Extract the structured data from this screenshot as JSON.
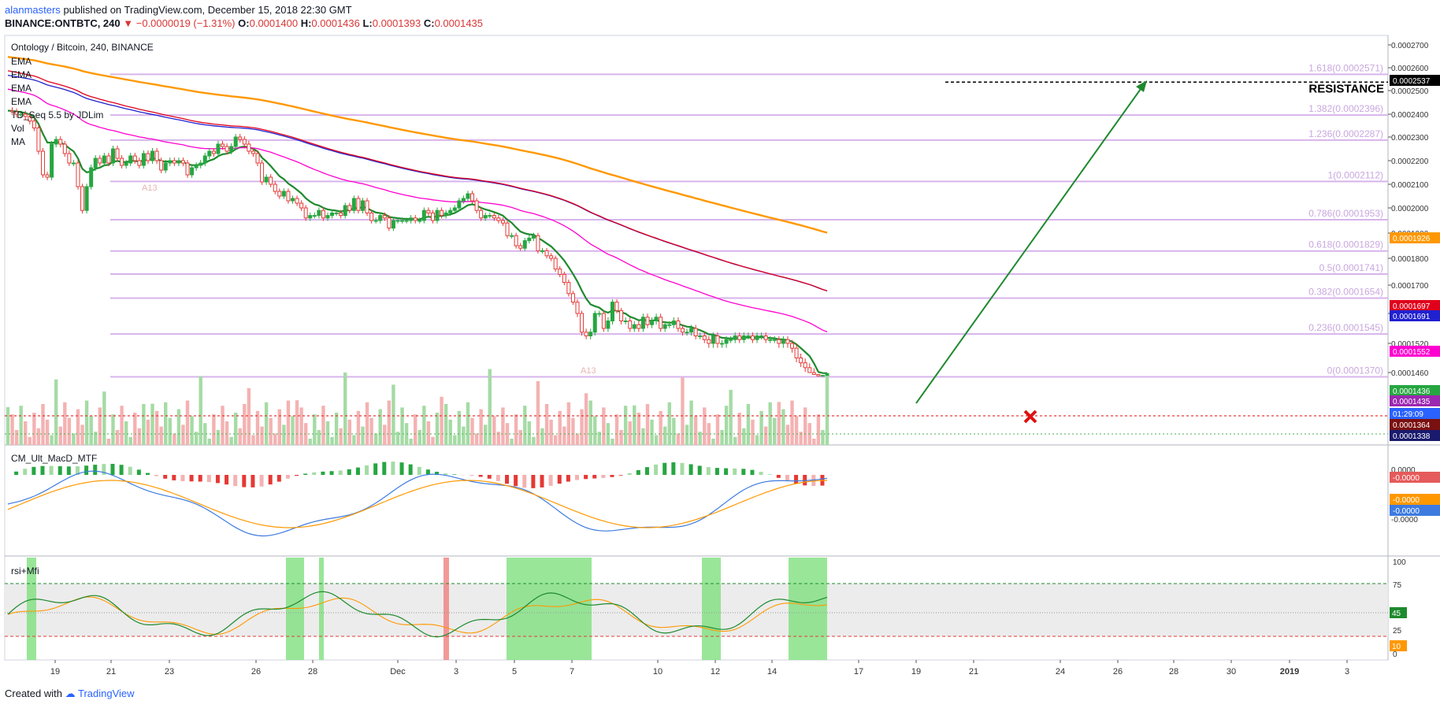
{
  "header": {
    "author": "alanmasters",
    "published_text": "published on TradingView.com, December 15, 2018 22:30 GMT",
    "symbol_line": "BINANCE:ONTBTC, 240",
    "change_arrow": "▼",
    "change_text": "−0.0000019 (−1.31%)",
    "ohlc": {
      "o_label": "O:",
      "o": "0.0001400",
      "h_label": "H:",
      "h": "0.0001436",
      "l_label": "L:",
      "l": "0.0001393",
      "c_label": "C:",
      "c": "0.0001435"
    }
  },
  "footer": {
    "created_with": "Created with",
    "brand": "TradingView"
  },
  "chart_data": {
    "type": "candlestick",
    "title": "Ontology / Bitcoin, 240, BINANCE",
    "legend": [
      "EMA",
      "EMA",
      "EMA",
      "EMA",
      "TD_Seq 5.5 by JDLim",
      "Vol",
      "MA"
    ],
    "y_ticks": [
      "0.0002700",
      "0.0002600",
      "0.0002500",
      "0.0002400",
      "0.0002300",
      "0.0002200",
      "0.0002100",
      "0.0002000",
      "0.0001900",
      "0.0001800",
      "0.0001700",
      "0.0001600",
      "0.0001520",
      "0.0001460"
    ],
    "x_ticks": [
      "19",
      "21",
      "23",
      "26",
      "28",
      "Dec",
      "3",
      "5",
      "7",
      "10",
      "12",
      "14",
      "17",
      "19",
      "21",
      "24",
      "26",
      "28",
      "30",
      "2019",
      "3"
    ],
    "fib_levels": [
      {
        "ratio": "1.618",
        "price": "0.0002571",
        "label": "1.618(0.0002571)"
      },
      {
        "ratio": "1.382",
        "price": "0.0002396",
        "label": "1.382(0.0002396)"
      },
      {
        "ratio": "1.236",
        "price": "0.0002287",
        "label": "1.236(0.0002287)"
      },
      {
        "ratio": "1",
        "price": "0.0002112",
        "label": "1(0.0002112)"
      },
      {
        "ratio": "0.786",
        "price": "0.0001953",
        "label": "0.786(0.0001953)"
      },
      {
        "ratio": "0.618",
        "price": "0.0001829",
        "label": "0.618(0.0001829)"
      },
      {
        "ratio": "0.5",
        "price": "0.0001741",
        "label": "0.5(0.0001741)"
      },
      {
        "ratio": "0.382",
        "price": "0.0001654",
        "label": "0.382(0.0001654)"
      },
      {
        "ratio": "0.236",
        "price": "0.0001545",
        "label": "0.236(0.0001545)"
      },
      {
        "ratio": "0",
        "price": "0.0001370",
        "label": "0(0.0001370)"
      }
    ],
    "resistance": {
      "label": "RESISTANCE",
      "price": "0.0002537"
    },
    "price_tags": [
      {
        "text": "0.0002537",
        "color": "#000000"
      },
      {
        "text": "0.0001926",
        "color": "#ff9800"
      },
      {
        "text": "0.0001697",
        "color": "#e0001b"
      },
      {
        "text": "0.0001691",
        "color": "#2020d0"
      },
      {
        "text": "0.0001552",
        "color": "#ff00d0"
      },
      {
        "text": "0.0001436",
        "color": "#26a641"
      },
      {
        "text": "0.0001435",
        "color": "#9c27b0"
      },
      {
        "text": "01:29:09",
        "color": "#2962ff"
      },
      {
        "text": "0.0001364",
        "color": "#7b1010"
      },
      {
        "text": "0.0001338",
        "color": "#1a1a6e"
      }
    ],
    "annotations": [
      "A13",
      "A13"
    ],
    "closes": [
      0.0002415,
      0.000241,
      0.00024,
      0.00024,
      0.000239,
      0.000237,
      0.000234,
      0.000224,
      0.000214,
      0.000213,
      0.000227,
      0.000229,
      0.000227,
      0.000223,
      0.000219,
      0.000219,
      0.000209,
      0.000199,
      0.000209,
      0.000217,
      0.000221,
      0.000219,
      0.000222,
      0.000219,
      0.000225,
      0.000221,
      0.000218,
      0.000219,
      0.000222,
      0.00022,
      0.000218,
      0.000223,
      0.00022,
      0.000224,
      0.00022,
      0.000216,
      0.000219,
      0.00022,
      0.000219,
      0.00022,
      0.000219,
      0.000214,
      0.000217,
      0.000218,
      0.000219,
      0.000222,
      0.000224,
      0.000223,
      0.000227,
      0.000226,
      0.000224,
      0.000226,
      0.00023,
      0.000229,
      0.000227,
      0.000224,
      0.000223,
      0.000219,
      0.000211,
      0.000213,
      0.00021,
      0.000207,
      0.000205,
      0.000207,
      0.000203,
      0.000204,
      0.000202,
      0.0002,
      0.000196,
      0.000197,
      0.000197,
      0.000199,
      0.000196,
      0.000197,
      0.000198,
      0.000198,
      0.000197,
      0.000201,
      0.000199,
      0.000204,
      0.000199,
      0.000203,
      0.000198,
      0.000195,
      0.000195,
      0.000197,
      0.000196,
      0.000192,
      0.000195,
      0.000195,
      0.000195,
      0.000195,
      0.000196,
      0.000195,
      0.000195,
      0.000199,
      0.000198,
      0.000195,
      0.000199,
      0.000197,
      0.000198,
      0.000199,
      0.0002,
      0.000203,
      0.000204,
      0.000206,
      0.000203,
      0.000199,
      0.000196,
      0.000197,
      0.000197,
      0.000196,
      0.000195,
      0.000194,
      0.000189,
      0.000189,
      0.000185,
      0.000184,
      0.000187,
      0.000188,
      0.000189,
      0.000183,
      0.000183,
      0.000181,
      0.00018,
      0.000176,
      0.000174,
      0.000171,
      0.000167,
      0.000164,
      0.00016,
      0.000155,
      0.000154,
      0.000155,
      0.00016,
      0.00016,
      0.000156,
      0.000158,
      0.000164,
      0.000161,
      0.000158,
      0.000158,
      0.000156,
      0.000157,
      0.000156,
      0.000159,
      0.000157,
      0.000158,
      0.000159,
      0.000156,
      0.000157,
      0.000157,
      0.000158,
      0.000156,
      0.000155,
      0.000155,
      0.000156,
      0.000154,
      0.000154,
      0.000153,
      0.000152,
      0.000154,
      0.000152,
      0.000152,
      0.000153,
      0.000153,
      0.000154,
      0.000153,
      0.000154,
      0.000154,
      0.000153,
      0.000154,
      0.000154,
      0.000153,
      0.000153,
      0.000153,
      0.000152,
      0.000153,
      0.000152,
      0.000151,
      0.000149,
      0.000148,
      0.000147,
      0.000146,
      0.000142,
      0.000139,
      0.00014,
      0.000144
    ],
    "macd_panel": {
      "label": "CM_Ult_MacD_MTF",
      "tags": [
        {
          "text": "-0.0000",
          "color": "#e55a5a"
        },
        {
          "text": "-0.0000",
          "color": "#ff9800"
        },
        {
          "text": "-0.0000",
          "color": "#3d7be0"
        }
      ],
      "ticks": [
        "0.0000",
        "-0.0000"
      ]
    },
    "rsi_panel": {
      "label": "rsi+Mfi",
      "ticks": [
        "100",
        "75",
        "25",
        "0"
      ],
      "tags": [
        {
          "text": "45",
          "color": "#1e8a2e"
        },
        {
          "text": "10",
          "color": "#ff9800"
        }
      ]
    }
  }
}
